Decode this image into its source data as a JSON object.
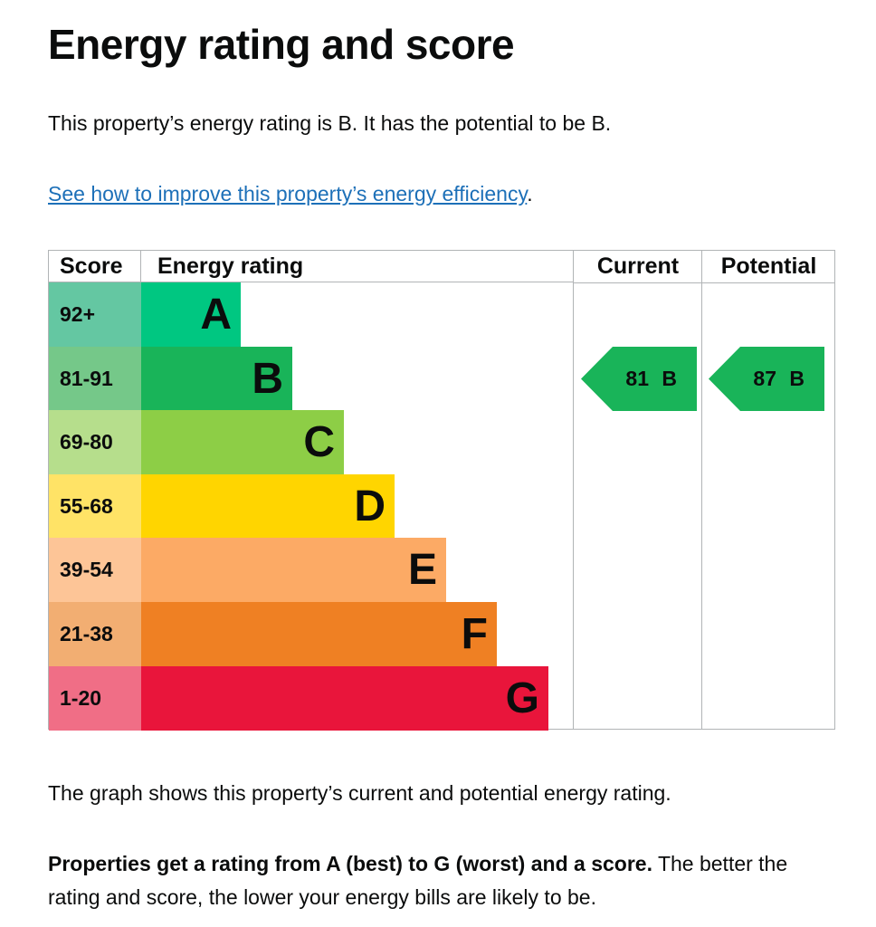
{
  "title": "Energy rating and score",
  "intro": "This property’s energy rating is B. It has the potential to be B.",
  "link_text": "See how to improve this property’s energy efficiency",
  "link_suffix": ".",
  "caption": "The graph shows this property’s current and potential energy rating.",
  "note_bold": "Properties get a rating from A (best) to G (worst) and a score.",
  "note_rest": " The better the rating and score, the lower your energy bills are likely to be.",
  "chart_data": {
    "type": "bar",
    "headers": {
      "score": "Score",
      "rating": "Energy rating",
      "current": "Current",
      "potential": "Potential"
    },
    "bands": [
      {
        "letter": "A",
        "score": "92+",
        "color": "#00c781",
        "score_color": "#64c7a2"
      },
      {
        "letter": "B",
        "score": "81-91",
        "color": "#19b459",
        "score_color": "#75c889"
      },
      {
        "letter": "C",
        "score": "69-80",
        "color": "#8dce46",
        "score_color": "#b6de8c"
      },
      {
        "letter": "D",
        "score": "55-68",
        "color": "#ffd500",
        "score_color": "#ffe366"
      },
      {
        "letter": "E",
        "score": "39-54",
        "color": "#fcaa65",
        "score_color": "#fdc597"
      },
      {
        "letter": "F",
        "score": "21-38",
        "color": "#ef8023",
        "score_color": "#f2ae72"
      },
      {
        "letter": "G",
        "score": "1-20",
        "color": "#e9153b",
        "score_color": "#f06e86"
      }
    ],
    "current": {
      "score": 81,
      "band": "B",
      "label": "81 B",
      "color": "#19b459"
    },
    "potential": {
      "score": 87,
      "band": "B",
      "label": "87 B",
      "color": "#19b459"
    }
  }
}
